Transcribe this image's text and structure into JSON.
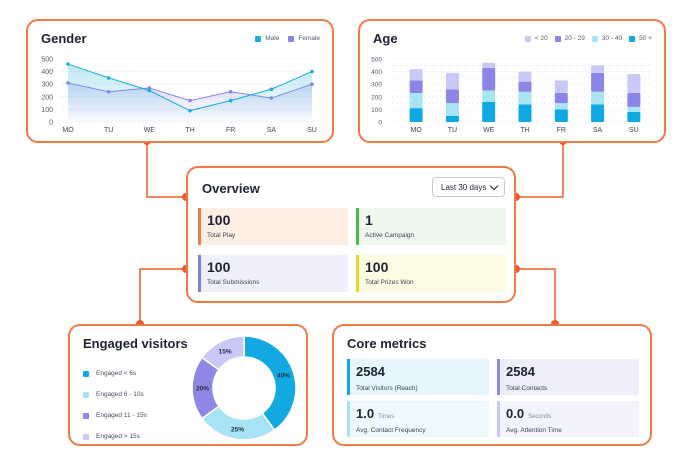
{
  "gender": {
    "title": "Gender",
    "legend": [
      {
        "label": "Male",
        "color": "#19aed6"
      },
      {
        "label": "Female",
        "color": "#8a86e8"
      }
    ]
  },
  "age": {
    "title": "Age",
    "legend": [
      {
        "label": "< 20",
        "color": "#c9c8f6"
      },
      {
        "label": "20 - 29",
        "color": "#8b86e6"
      },
      {
        "label": "30 - 40",
        "color": "#a8e4f4"
      },
      {
        "label": "50 +",
        "color": "#0ea8e2"
      }
    ]
  },
  "overview": {
    "title": "Overview",
    "range_select": "Last 30 days",
    "tiles": [
      {
        "value": "100",
        "label": "Total Play",
        "accent": "#f07a45",
        "bg": "#fdeee3"
      },
      {
        "value": "1",
        "label": "Active Campaign",
        "accent": "#4cbb4c",
        "bg": "#eef8ee"
      },
      {
        "value": "100",
        "label": "Total Submissions",
        "accent": "#7d7fe2",
        "bg": "#eeeffb"
      },
      {
        "value": "100",
        "label": "Total Prizes Won",
        "accent": "#e8d62a",
        "bg": "#fdfbe3"
      }
    ]
  },
  "engaged": {
    "title": "Engaged visitors",
    "legend": [
      {
        "label": "Engaged < 6s",
        "color": "#12a9e3"
      },
      {
        "label": "Engaged 6 - 10s",
        "color": "#a7e2f5"
      },
      {
        "label": "Engaged 11 - 15s",
        "color": "#8e87e3"
      },
      {
        "label": "Engaged > 15s",
        "color": "#c8c7f5"
      }
    ]
  },
  "core": {
    "title": "Core metrics",
    "tiles": [
      {
        "value": "2584",
        "unit": "",
        "label": "Total Visitors (Reach)",
        "accent": "#12a9e3",
        "bg": "#e6f6fc"
      },
      {
        "value": "2584",
        "unit": "",
        "label": "Total  Contacts",
        "accent": "#8e87e3",
        "bg": "#eeeefb"
      },
      {
        "value": "1.0",
        "unit": "Times",
        "label": "Avg. Contact Frequency",
        "accent": "#a7e2f5",
        "bg": "#eef9fd"
      },
      {
        "value": "0.0",
        "unit": "Seconds",
        "label": "Avg. Attention Time",
        "accent": "#c8c7f5",
        "bg": "#f3f3fc"
      }
    ]
  },
  "chart_data": [
    {
      "type": "line",
      "title": "Gender",
      "categories": [
        "MO",
        "TU",
        "WE",
        "TH",
        "FR",
        "SA",
        "SU"
      ],
      "ylim": [
        0,
        500
      ],
      "yticks": [
        0,
        100,
        200,
        300,
        400,
        500
      ],
      "grid": true,
      "legend": "top-right",
      "series": [
        {
          "name": "Male",
          "color": "#19aed6",
          "values": [
            460,
            350,
            250,
            90,
            170,
            260,
            400
          ]
        },
        {
          "name": "Female",
          "color": "#8a86e8",
          "values": [
            310,
            240,
            270,
            170,
            240,
            190,
            300
          ]
        }
      ]
    },
    {
      "type": "bar",
      "stacked": true,
      "title": "Age",
      "categories": [
        "MO",
        "TU",
        "WE",
        "TH",
        "FR",
        "SA",
        "SU"
      ],
      "ylim": [
        0,
        500
      ],
      "yticks": [
        0,
        50,
        100,
        150,
        200,
        250,
        300,
        350,
        400,
        450,
        500
      ],
      "grid": true,
      "legend": "top-right",
      "series": [
        {
          "name": "50 +",
          "color": "#0ea8e2",
          "values": [
            110,
            50,
            160,
            140,
            100,
            140,
            80
          ]
        },
        {
          "name": "30 - 40",
          "color": "#a8e4f4",
          "values": [
            120,
            100,
            90,
            100,
            50,
            100,
            40
          ]
        },
        {
          "name": "20 - 29",
          "color": "#8b86e6",
          "values": [
            100,
            110,
            180,
            80,
            80,
            150,
            110
          ]
        },
        {
          "name": "< 20",
          "color": "#c9c8f6",
          "values": [
            90,
            130,
            40,
            80,
            100,
            60,
            150
          ]
        }
      ]
    },
    {
      "type": "pie",
      "donut": true,
      "title": "Engaged visitors",
      "categories": [
        "Engaged < 6s",
        "Engaged 6 - 10s",
        "Engaged 11 - 15s",
        "Engaged > 15s"
      ],
      "values": [
        40,
        25,
        20,
        15
      ],
      "labels": [
        "40%",
        "25%",
        "20%",
        "15%"
      ],
      "colors": [
        "#12a9e3",
        "#a7e2f5",
        "#8e87e3",
        "#c8c7f5"
      ]
    }
  ]
}
